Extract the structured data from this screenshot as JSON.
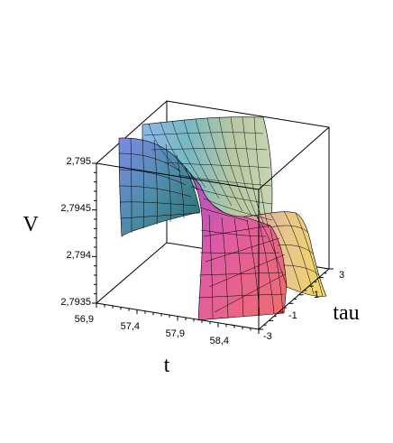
{
  "chart_data": {
    "type": "surface3d",
    "xlabel": "t",
    "ylabel": "tau",
    "zlabel": "V",
    "x_ticks": [
      "56,9",
      "57,4",
      "57,9",
      "58,4"
    ],
    "y_ticks": [
      "-3",
      "-1",
      "1",
      "3"
    ],
    "z_ticks": [
      "2,7935",
      "2,794",
      "2,7945",
      "2,795"
    ],
    "x_range": [
      56.75,
      58.75
    ],
    "y_range": [
      -3.5,
      3.5
    ],
    "z_range": [
      2.7935,
      2.795
    ],
    "surface": {
      "description_points": [
        {
          "t": 56.9,
          "tau": -3,
          "V": 2.7949
        },
        {
          "t": 57.4,
          "tau": 0,
          "V": 2.7946
        },
        {
          "t": 58.0,
          "tau": 0,
          "V": 2.7941
        },
        {
          "t": 58.4,
          "tau": -3,
          "V": 2.7937
        },
        {
          "t": 58.4,
          "tau": 3,
          "V": 2.7943
        }
      ]
    },
    "grid": false,
    "box": true
  }
}
